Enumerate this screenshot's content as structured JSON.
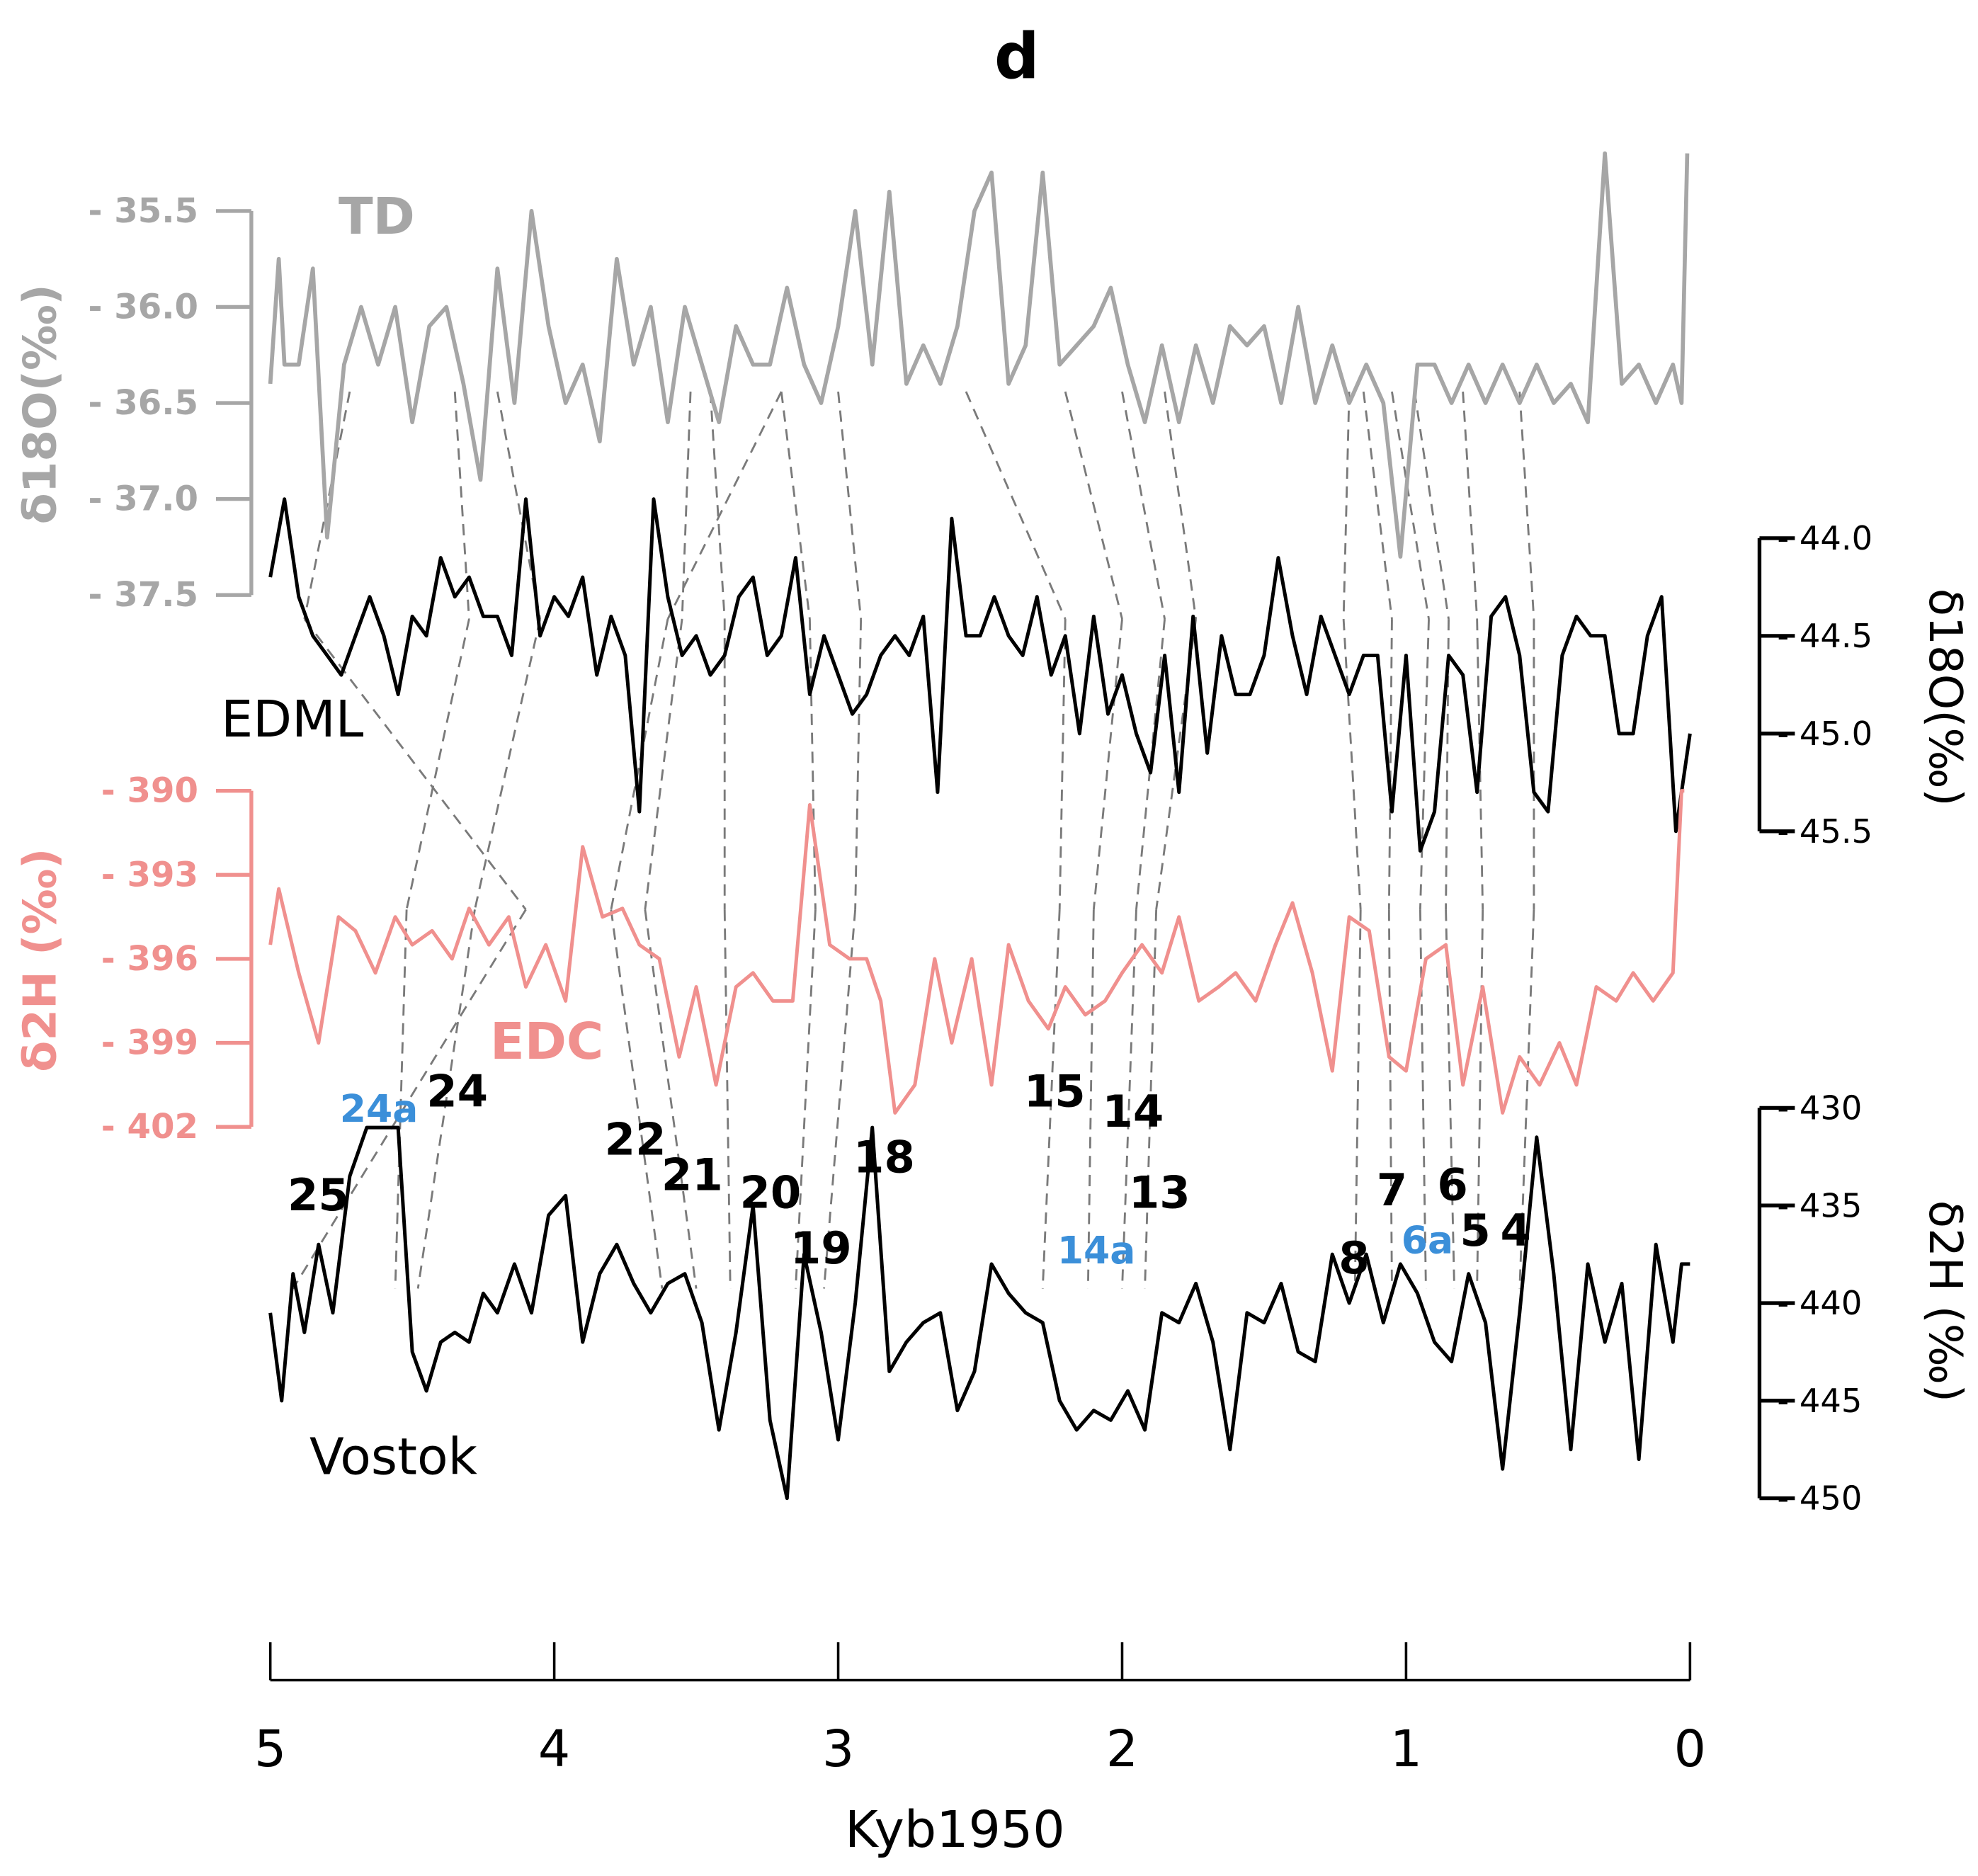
{
  "chart_data": {
    "type": "line",
    "title": "d",
    "xlabel": "Kyb1950",
    "xlim": [
      5,
      0
    ],
    "x_ticks": [
      5,
      4,
      3,
      2,
      1,
      0
    ],
    "x_tick_labels": [
      "5",
      "4",
      "3",
      "2",
      "1",
      "0"
    ],
    "colors": {
      "TD": "#a6a6a6",
      "EDML": "#000000",
      "EDC": "#f0908e",
      "Vostok": "#000000",
      "blue_label": "#3b8fd9",
      "tie_line": "#7a7a7a"
    },
    "series": [
      {
        "name": "TD",
        "axis_label": "δ18O(‰)",
        "axis_side": "left",
        "ylim": [
          -37.5,
          -35.5
        ],
        "ticks": [
          -35.5,
          -36.0,
          -36.5,
          -37.0,
          -37.5
        ],
        "tick_labels": [
          "- 35.5",
          "- 36.0",
          "- 36.5",
          "- 37.0",
          "- 37.5"
        ],
        "x": [
          5.0,
          4.97,
          4.95,
          4.9,
          4.85,
          4.8,
          4.74,
          4.68,
          4.62,
          4.56,
          4.5,
          4.44,
          4.38,
          4.32,
          4.26,
          4.2,
          4.14,
          4.08,
          4.02,
          3.96,
          3.9,
          3.84,
          3.78,
          3.72,
          3.66,
          3.6,
          3.54,
          3.48,
          3.42,
          3.36,
          3.3,
          3.24,
          3.18,
          3.12,
          3.06,
          3.0,
          2.94,
          2.88,
          2.82,
          2.76,
          2.7,
          2.64,
          2.58,
          2.52,
          2.46,
          2.4,
          2.34,
          2.28,
          2.22,
          2.16,
          2.1,
          2.04,
          1.98,
          1.92,
          1.86,
          1.8,
          1.74,
          1.68,
          1.62,
          1.56,
          1.5,
          1.44,
          1.38,
          1.32,
          1.26,
          1.2,
          1.14,
          1.08,
          1.02,
          0.96,
          0.9,
          0.84,
          0.78,
          0.72,
          0.66,
          0.6,
          0.54,
          0.48,
          0.42,
          0.36,
          0.3,
          0.24,
          0.18,
          0.12,
          0.06,
          0.03,
          0.01
        ],
        "y": [
          -36.4,
          -35.75,
          -36.3,
          -36.3,
          -35.8,
          -37.2,
          -36.3,
          -36.0,
          -36.3,
          -36.0,
          -36.6,
          -36.1,
          -36.0,
          -36.4,
          -36.9,
          -35.8,
          -36.5,
          -35.5,
          -36.1,
          -36.5,
          -36.3,
          -36.7,
          -35.75,
          -36.3,
          -36.0,
          -36.6,
          -36.0,
          -36.3,
          -36.6,
          -36.1,
          -36.3,
          -36.3,
          -35.9,
          -36.3,
          -36.5,
          -36.1,
          -35.5,
          -36.3,
          -35.4,
          -36.4,
          -36.2,
          -36.4,
          -36.1,
          -35.5,
          -35.3,
          -36.4,
          -36.2,
          -35.3,
          -36.3,
          -36.2,
          -36.1,
          -35.9,
          -36.3,
          -36.6,
          -36.2,
          -36.6,
          -36.2,
          -36.5,
          -36.1,
          -36.2,
          -36.1,
          -36.5,
          -36.0,
          -36.5,
          -36.2,
          -36.5,
          -36.3,
          -36.5,
          -37.3,
          -36.3,
          -36.3,
          -36.5,
          -36.3,
          -36.5,
          -36.3,
          -36.5,
          -36.3,
          -36.5,
          -36.4,
          -36.6,
          -35.2,
          -36.4,
          -36.3,
          -36.5,
          -36.3,
          -36.5,
          -35.2
        ]
      },
      {
        "name": "EDML",
        "axis_label": "δ18O(‰)",
        "axis_side": "right",
        "ylim": [
          -45.5,
          -44.0
        ],
        "ticks": [
          -44.0,
          -44.5,
          -45.0,
          -45.5
        ],
        "tick_labels": [
          "- 44.0",
          "- 44.5",
          "- 45.0",
          "- 45.5"
        ],
        "x": [
          5.0,
          4.95,
          4.9,
          4.85,
          4.8,
          4.75,
          4.7,
          4.65,
          4.6,
          4.55,
          4.5,
          4.45,
          4.4,
          4.35,
          4.3,
          4.25,
          4.2,
          4.15,
          4.1,
          4.05,
          4.0,
          3.95,
          3.9,
          3.85,
          3.8,
          3.75,
          3.7,
          3.65,
          3.6,
          3.55,
          3.5,
          3.45,
          3.4,
          3.35,
          3.3,
          3.25,
          3.2,
          3.15,
          3.1,
          3.05,
          3.0,
          2.95,
          2.9,
          2.85,
          2.8,
          2.75,
          2.7,
          2.65,
          2.6,
          2.55,
          2.5,
          2.45,
          2.4,
          2.35,
          2.3,
          2.25,
          2.2,
          2.15,
          2.1,
          2.05,
          2.0,
          1.95,
          1.9,
          1.85,
          1.8,
          1.75,
          1.7,
          1.65,
          1.6,
          1.55,
          1.5,
          1.45,
          1.4,
          1.35,
          1.3,
          1.25,
          1.2,
          1.15,
          1.1,
          1.05,
          1.0,
          0.95,
          0.9,
          0.85,
          0.8,
          0.75,
          0.7,
          0.65,
          0.6,
          0.55,
          0.5,
          0.45,
          0.4,
          0.35,
          0.3,
          0.25,
          0.2,
          0.15,
          0.1,
          0.05,
          0.0
        ],
        "y": [
          -44.2,
          -43.8,
          -44.3,
          -44.5,
          -44.6,
          -44.7,
          -44.5,
          -44.3,
          -44.5,
          -44.8,
          -44.4,
          -44.5,
          -44.1,
          -44.3,
          -44.2,
          -44.4,
          -44.4,
          -44.6,
          -43.8,
          -44.5,
          -44.3,
          -44.4,
          -44.2,
          -44.7,
          -44.4,
          -44.6,
          -45.4,
          -43.8,
          -44.3,
          -44.6,
          -44.5,
          -44.7,
          -44.6,
          -44.3,
          -44.2,
          -44.6,
          -44.5,
          -44.1,
          -44.8,
          -44.5,
          -44.7,
          -44.9,
          -44.8,
          -44.6,
          -44.5,
          -44.6,
          -44.4,
          -45.3,
          -43.9,
          -44.5,
          -44.5,
          -44.3,
          -44.5,
          -44.6,
          -44.3,
          -44.7,
          -44.5,
          -45.0,
          -44.4,
          -44.9,
          -44.7,
          -45.0,
          -45.2,
          -44.6,
          -45.3,
          -44.4,
          -45.1,
          -44.5,
          -44.8,
          -44.8,
          -44.6,
          -44.1,
          -44.5,
          -44.8,
          -44.4,
          -44.6,
          -44.8,
          -44.6,
          -44.6,
          -45.4,
          -44.6,
          -45.6,
          -45.4,
          -44.6,
          -44.7,
          -45.3,
          -44.4,
          -44.3,
          -44.6,
          -45.3,
          -45.4,
          -44.6,
          -44.4,
          -44.5,
          -44.5,
          -45.0,
          -45.0,
          -44.5,
          -44.3,
          -45.5,
          -45.0
        ]
      },
      {
        "name": "EDC",
        "axis_label": "δ2H (‰)",
        "axis_side": "left",
        "ylim": [
          -402,
          -390
        ],
        "ticks": [
          -390,
          -393,
          -396,
          -399,
          -402
        ],
        "tick_labels": [
          "- 390",
          "- 393",
          "- 396",
          "- 399",
          "- 402"
        ],
        "x": [
          5.0,
          4.97,
          4.9,
          4.83,
          4.76,
          4.7,
          4.63,
          4.56,
          4.5,
          4.43,
          4.36,
          4.3,
          4.23,
          4.16,
          4.1,
          4.03,
          3.96,
          3.9,
          3.83,
          3.76,
          3.7,
          3.63,
          3.56,
          3.5,
          3.43,
          3.36,
          3.3,
          3.23,
          3.16,
          3.1,
          3.03,
          2.96,
          2.9,
          2.85,
          2.8,
          2.73,
          2.66,
          2.6,
          2.53,
          2.46,
          2.4,
          2.33,
          2.26,
          2.2,
          2.13,
          2.06,
          2.0,
          1.93,
          1.86,
          1.8,
          1.73,
          1.66,
          1.6,
          1.53,
          1.46,
          1.4,
          1.33,
          1.26,
          1.2,
          1.13,
          1.06,
          1.0,
          0.93,
          0.86,
          0.8,
          0.73,
          0.66,
          0.6,
          0.53,
          0.46,
          0.4,
          0.33,
          0.26,
          0.2,
          0.13,
          0.06,
          0.03,
          0.02
        ],
        "y": [
          -395.5,
          -393.5,
          -396.5,
          -399,
          -394.5,
          -395,
          -396.5,
          -394.5,
          -395.5,
          -395.0,
          -396.0,
          -394.2,
          -395.5,
          -394.5,
          -397,
          -395.5,
          -397.5,
          -392.0,
          -394.5,
          -394.2,
          -395.5,
          -396,
          -399.5,
          -397,
          -400.5,
          -397,
          -396.5,
          -397.5,
          -397.5,
          -390.5,
          -395.5,
          -396.0,
          -396.0,
          -397.5,
          -401.5,
          -400.5,
          -396.0,
          -399.0,
          -396.0,
          -400.5,
          -395.5,
          -397.5,
          -398.5,
          -397.0,
          -398.0,
          -397.5,
          -396.5,
          -395.5,
          -396.5,
          -394.5,
          -397.5,
          -397.0,
          -396.5,
          -397.5,
          -395.5,
          -394.0,
          -396.5,
          -400.0,
          -394.5,
          -395.0,
          -399.5,
          -400.0,
          -396.0,
          -395.5,
          -400.5,
          -397.0,
          -401.5,
          -399.5,
          -400.5,
          -399.0,
          -400.5,
          -397.0,
          -397.5,
          -396.5,
          -397.5,
          -396.5,
          -390.0,
          -390.0
        ]
      },
      {
        "name": "Vostok",
        "axis_label": "δ2H (‰)",
        "axis_side": "right",
        "ylim": [
          -450,
          -430
        ],
        "ticks": [
          -430,
          -435,
          -440,
          -445,
          -450
        ],
        "tick_labels": [
          "- 430",
          "- 435",
          "- 440",
          "- 445",
          "- 450"
        ],
        "x": [
          5.0,
          4.96,
          4.92,
          4.88,
          4.83,
          4.78,
          4.72,
          4.66,
          4.6,
          4.55,
          4.5,
          4.45,
          4.4,
          4.35,
          4.3,
          4.25,
          4.2,
          4.14,
          4.08,
          4.02,
          3.96,
          3.9,
          3.84,
          3.78,
          3.72,
          3.66,
          3.6,
          3.54,
          3.48,
          3.42,
          3.36,
          3.3,
          3.24,
          3.18,
          3.12,
          3.06,
          3.0,
          2.94,
          2.88,
          2.82,
          2.76,
          2.7,
          2.64,
          2.58,
          2.52,
          2.46,
          2.4,
          2.34,
          2.28,
          2.22,
          2.16,
          2.1,
          2.04,
          1.98,
          1.92,
          1.86,
          1.8,
          1.74,
          1.68,
          1.62,
          1.56,
          1.5,
          1.44,
          1.38,
          1.32,
          1.26,
          1.2,
          1.14,
          1.08,
          1.02,
          0.96,
          0.9,
          0.84,
          0.78,
          0.72,
          0.66,
          0.6,
          0.54,
          0.48,
          0.42,
          0.36,
          0.3,
          0.24,
          0.18,
          0.12,
          0.06,
          0.03,
          0.0
        ],
        "y": [
          -440.5,
          -445.0,
          -438.5,
          -441.5,
          -437.0,
          -440.5,
          -433.5,
          -431.0,
          -431.0,
          -431.0,
          -442.5,
          -444.5,
          -442.0,
          -441.5,
          -442.0,
          -439.5,
          -440.5,
          -438.0,
          -440.5,
          -435.5,
          -434.5,
          -442.0,
          -438.5,
          -437.0,
          -439.0,
          -440.5,
          -439.0,
          -438.5,
          -441.0,
          -446.5,
          -441.5,
          -435.0,
          -446.0,
          -450.0,
          -437.5,
          -441.5,
          -447.0,
          -440.0,
          -431.0,
          -443.5,
          -442.0,
          -441.0,
          -440.5,
          -445.5,
          -443.5,
          -438.0,
          -439.5,
          -440.5,
          -441.0,
          -445.0,
          -446.5,
          -445.5,
          -446.0,
          -444.5,
          -446.5,
          -440.5,
          -441.0,
          -439.0,
          -442.0,
          -447.5,
          -440.5,
          -441.0,
          -439.0,
          -442.5,
          -443.0,
          -437.5,
          -440.0,
          -437.5,
          -441.0,
          -438.0,
          -439.5,
          -442.0,
          -443.0,
          -438.5,
          -441.0,
          -448.5,
          -440.5,
          -431.5,
          -438.5,
          -447.5,
          -438.0,
          -442.0,
          -439.0,
          -448.0,
          -437.0,
          -442.0,
          -438.0,
          -438.0
        ]
      }
    ],
    "record_labels": [
      "TD",
      "EDML",
      "EDC",
      "Vostok"
    ],
    "event_labels": [
      {
        "text": "25",
        "color": "black"
      },
      {
        "text": "24a",
        "color": "blue"
      },
      {
        "text": "24",
        "color": "black"
      },
      {
        "text": "22",
        "color": "black"
      },
      {
        "text": "21",
        "color": "black"
      },
      {
        "text": "20",
        "color": "black"
      },
      {
        "text": "19",
        "color": "black"
      },
      {
        "text": "18",
        "color": "black"
      },
      {
        "text": "15",
        "color": "black"
      },
      {
        "text": "14",
        "color": "black"
      },
      {
        "text": "14a",
        "color": "blue"
      },
      {
        "text": "13",
        "color": "black"
      },
      {
        "text": "8",
        "color": "black"
      },
      {
        "text": "7",
        "color": "black"
      },
      {
        "text": "6a",
        "color": "blue"
      },
      {
        "text": "6",
        "color": "black"
      },
      {
        "text": "5",
        "color": "black"
      },
      {
        "text": "4",
        "color": "black"
      }
    ],
    "tie_points": [
      [
        4.72,
        4.88,
        4.1,
        4.92
      ],
      [
        4.35,
        4.3,
        4.52,
        4.56
      ],
      [
        4.2,
        4.05,
        4.28,
        4.48
      ],
      [
        3.2,
        3.6,
        3.8,
        3.62
      ],
      [
        3.52,
        3.55,
        3.68,
        3.5
      ],
      [
        3.45,
        3.4,
        3.4,
        3.38
      ],
      [
        3.2,
        3.1,
        3.08,
        3.15
      ],
      [
        3.0,
        2.92,
        2.94,
        3.05
      ],
      [
        2.55,
        2.2,
        2.22,
        2.28
      ],
      [
        2.2,
        2.0,
        2.1,
        2.12
      ],
      [
        2.0,
        1.85,
        1.95,
        2.0
      ],
      [
        1.85,
        1.74,
        1.88,
        1.92
      ],
      [
        1.2,
        1.22,
        1.16,
        1.18
      ],
      [
        1.15,
        1.05,
        1.06,
        1.05
      ],
      [
        1.05,
        0.92,
        0.95,
        0.93
      ],
      [
        0.97,
        0.85,
        0.86,
        0.83
      ],
      [
        0.8,
        0.75,
        0.73,
        0.75
      ],
      [
        0.6,
        0.55,
        0.55,
        0.6
      ]
    ]
  }
}
